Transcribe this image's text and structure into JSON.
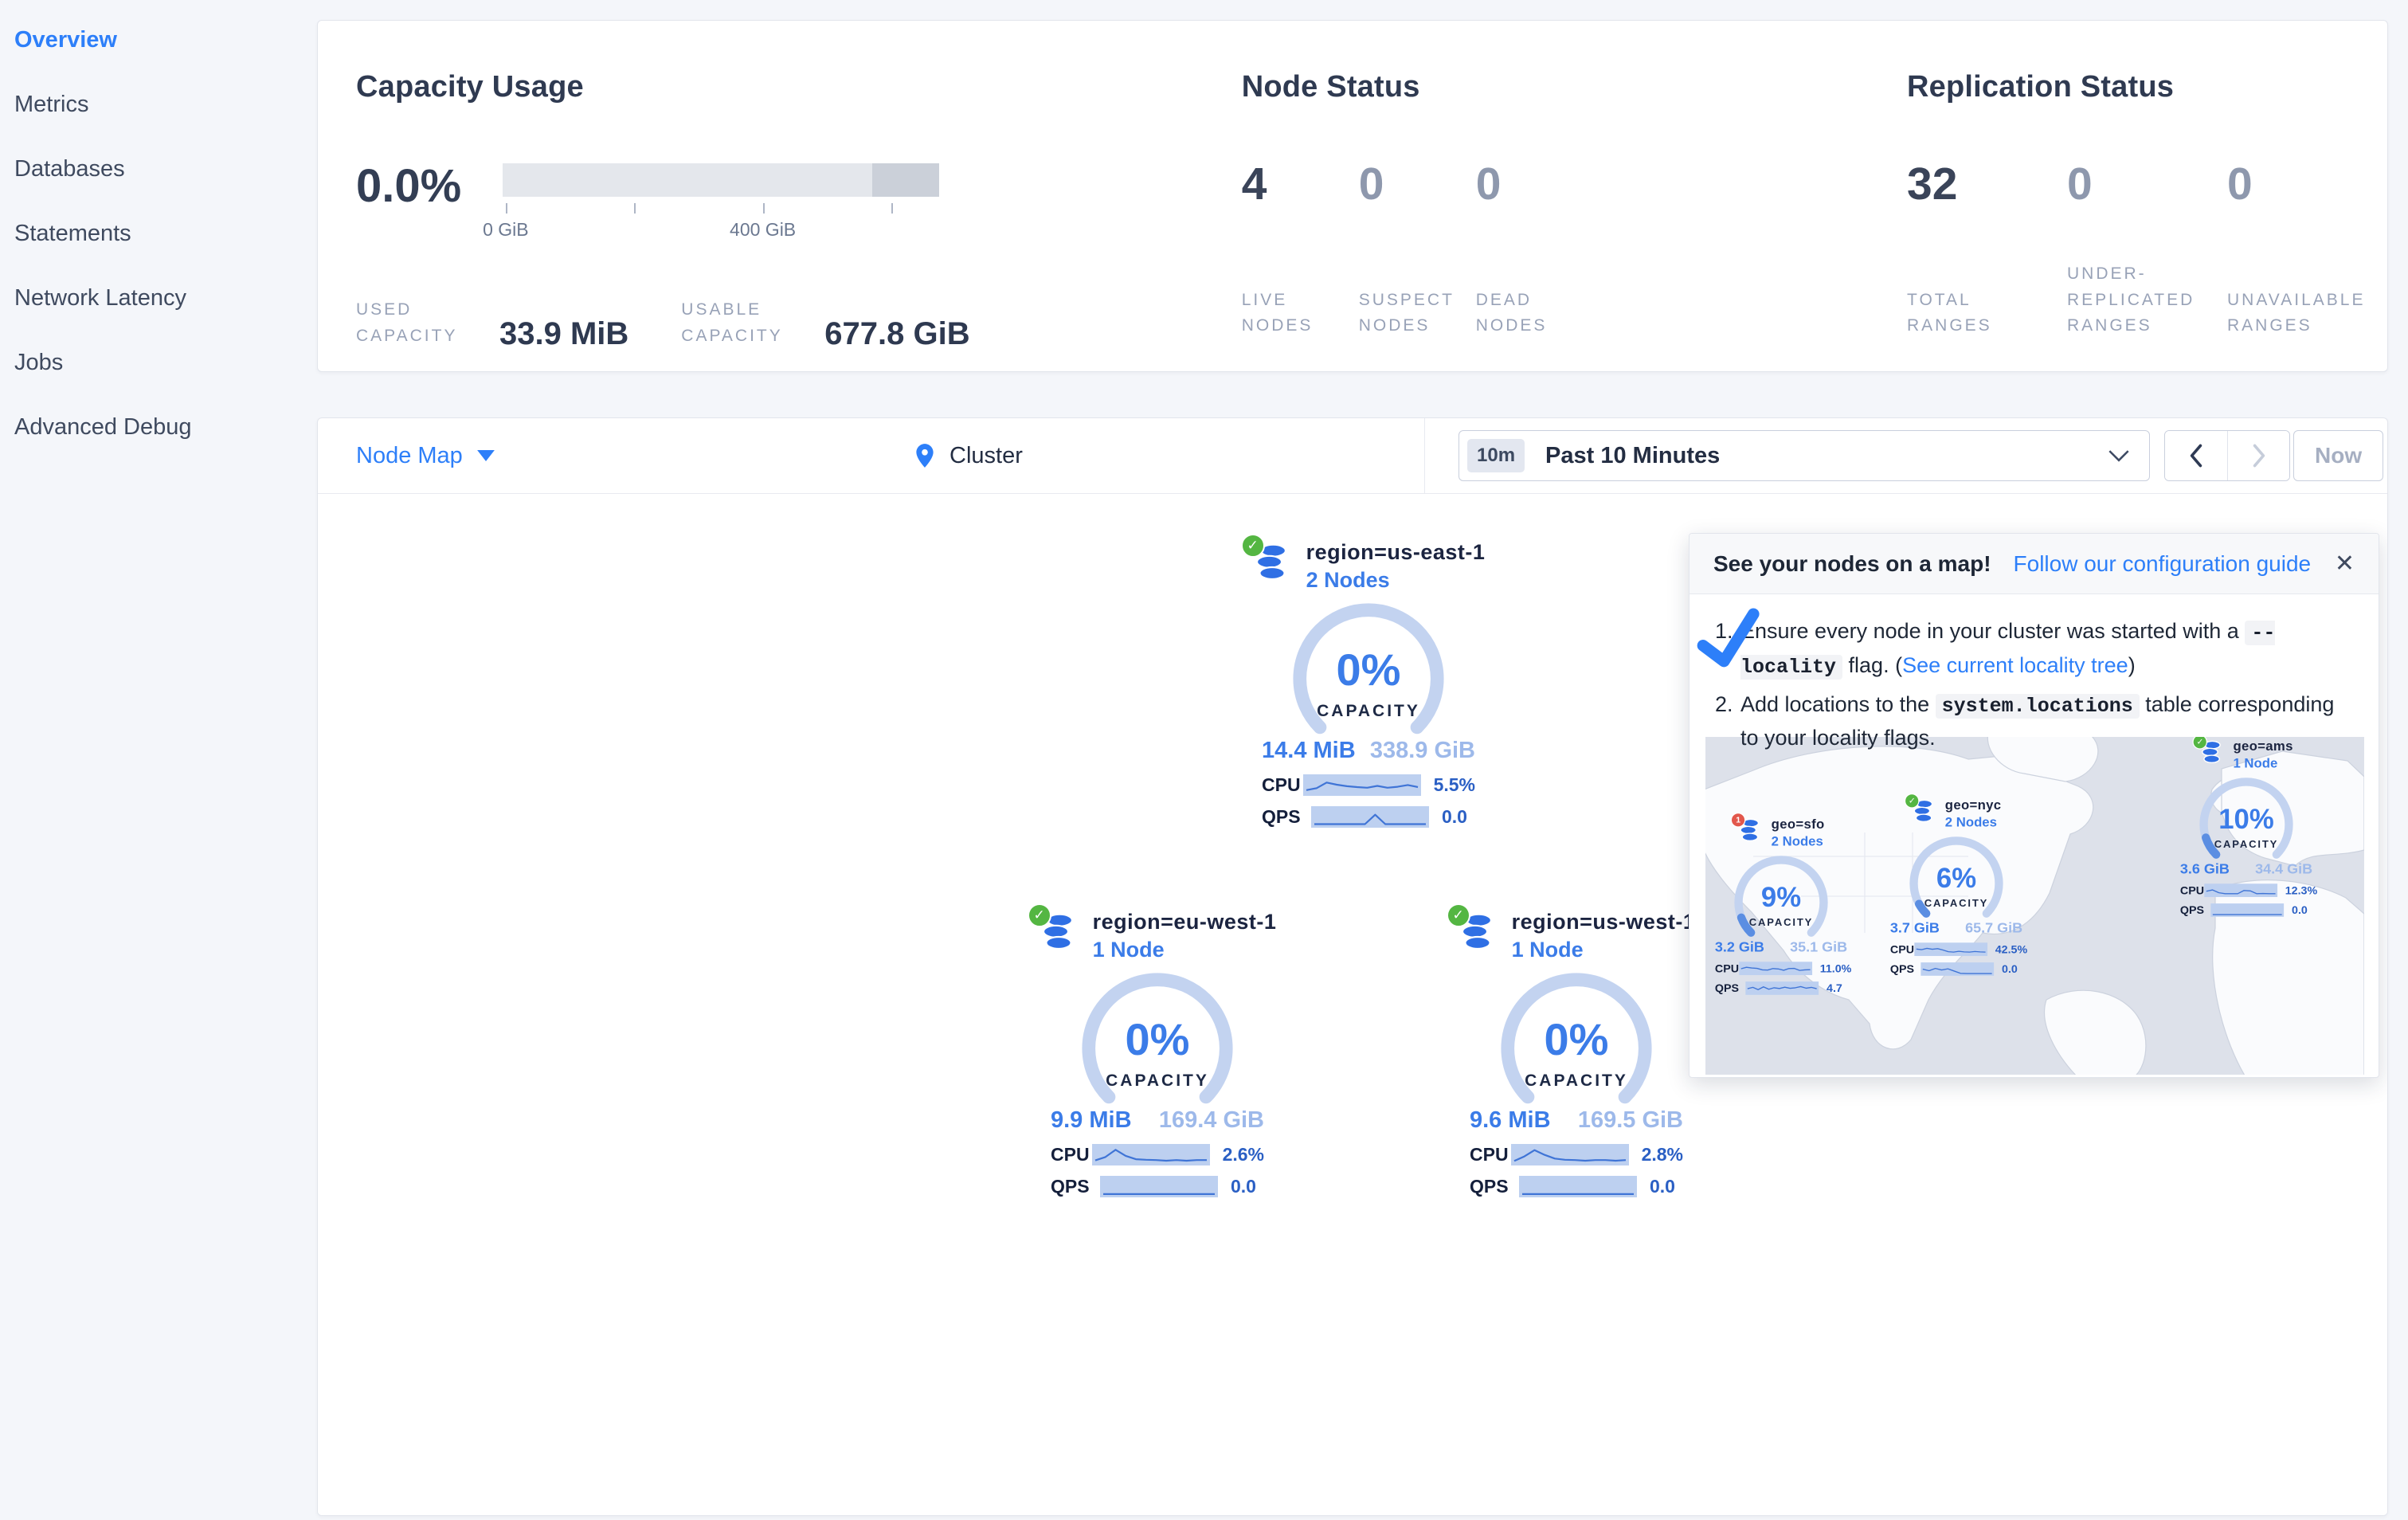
{
  "colors": {
    "accent_blue": "#2d7ff9",
    "gauge_blue": "#3b7ce8",
    "ok_green": "#54b642",
    "alert_red": "#e2574c",
    "arc_track": "#c3d3f0",
    "arc_used": "#5b8ee2",
    "spark_band": "#bdd0f0",
    "spark_line": "#3f74d6"
  },
  "sidebar": {
    "items": [
      {
        "label": "Overview",
        "active": true
      },
      {
        "label": "Metrics",
        "active": false
      },
      {
        "label": "Databases",
        "active": false
      },
      {
        "label": "Statements",
        "active": false
      },
      {
        "label": "Network Latency",
        "active": false
      },
      {
        "label": "Jobs",
        "active": false
      },
      {
        "label": "Advanced Debug",
        "active": false
      }
    ]
  },
  "summary": {
    "capacity": {
      "title": "Capacity Usage",
      "percent": "0.0%",
      "axis": [
        {
          "pos": 0.7,
          "label": "0 GiB"
        },
        {
          "pos": 30.2,
          "label": ""
        },
        {
          "pos": 59.6,
          "label": "400 GiB"
        },
        {
          "pos": 89.0,
          "label": ""
        }
      ],
      "dark_segment_from": 84.6,
      "used_label": "USED CAPACITY",
      "used_value": "33.9 MiB",
      "usable_label": "USABLE CAPACITY",
      "usable_value": "677.8 GiB"
    },
    "nodes": {
      "title": "Node Status",
      "stats": [
        {
          "value": "4",
          "label": "LIVE NODES",
          "emphasis": true
        },
        {
          "value": "0",
          "label": "SUSPECT NODES",
          "emphasis": false
        },
        {
          "value": "0",
          "label": "DEAD NODES",
          "emphasis": false
        }
      ]
    },
    "replication": {
      "title": "Replication Status",
      "stats": [
        {
          "value": "32",
          "label": "TOTAL RANGES",
          "emphasis": true
        },
        {
          "value": "0",
          "label": "UNDER-REPLICATED RANGES",
          "emphasis": false
        },
        {
          "value": "0",
          "label": "UNAVAILABLE RANGES",
          "emphasis": false
        }
      ]
    }
  },
  "toolbar": {
    "view_selector": "Node Map",
    "breadcrumb": "Cluster",
    "time_badge": "10m",
    "time_label": "Past 10 Minutes",
    "now_label": "Now"
  },
  "labels": {
    "capacity": "CAPACITY",
    "cpu": "CPU",
    "qps": "QPS"
  },
  "map_nodes": [
    {
      "name": "region=us-east-1",
      "nodes_label": "2 Nodes",
      "status": "ok",
      "badge": "",
      "percent": "0%",
      "pct": 0,
      "used": "14.4 MiB",
      "total": "338.9 GiB",
      "cpu_value": "5.5%",
      "qps_value": "0.0",
      "cpu_spark": [
        22,
        35,
        72,
        58,
        48,
        42,
        38,
        50,
        38,
        44,
        56,
        42
      ],
      "qps_spark": [
        8,
        8,
        8,
        8,
        8,
        8,
        70,
        8,
        8,
        8,
        8,
        8
      ]
    },
    {
      "name": "region=eu-west-1",
      "nodes_label": "1 Node",
      "status": "ok",
      "badge": "",
      "percent": "0%",
      "pct": 0,
      "used": "9.9 MiB",
      "total": "169.4 GiB",
      "cpu_value": "2.6%",
      "qps_value": "0.0",
      "cpu_spark": [
        18,
        40,
        88,
        48,
        26,
        22,
        20,
        16,
        20,
        16,
        20,
        20
      ],
      "qps_spark": [
        6,
        6,
        6,
        6,
        6,
        6,
        6,
        6,
        6,
        6,
        6,
        6
      ]
    },
    {
      "name": "region=us-west-1",
      "nodes_label": "1 Node",
      "status": "ok",
      "badge": "",
      "percent": "0%",
      "pct": 0,
      "used": "9.6 MiB",
      "total": "169.5 GiB",
      "cpu_value": "2.8%",
      "qps_value": "0.0",
      "cpu_spark": [
        14,
        44,
        86,
        54,
        30,
        22,
        20,
        16,
        20,
        20,
        16,
        20
      ],
      "qps_spark": [
        6,
        6,
        6,
        6,
        6,
        6,
        6,
        6,
        6,
        6,
        6,
        6
      ]
    }
  ],
  "popup": {
    "title": "See your nodes on a map!",
    "link_label": "Follow our configuration guide",
    "close_glyph": "✕",
    "steps": [
      {
        "num": "1.",
        "parts": [
          {
            "t": "text",
            "v": "Ensure every node in your cluster was started with a "
          },
          {
            "t": "code",
            "v": "--locality"
          },
          {
            "t": "text",
            "v": " flag. ("
          },
          {
            "t": "link",
            "v": "See current locality tree"
          },
          {
            "t": "text",
            "v": ")"
          }
        ]
      },
      {
        "num": "2.",
        "parts": [
          {
            "t": "text",
            "v": "Add locations to the "
          },
          {
            "t": "code",
            "v": "system.locations"
          },
          {
            "t": "text",
            "v": " table corresponding to your locality flags."
          }
        ]
      }
    ],
    "mini_nodes": [
      {
        "name": "geo=sfo",
        "nodes_label": "2 Nodes",
        "status": "alert",
        "badge": "1",
        "percent": "9%",
        "pct": 9,
        "used": "3.2 GiB",
        "total": "35.1 GiB",
        "cpu_value": "11.0%",
        "qps_value": "4.7",
        "cpu_spark": [
          52,
          68,
          60,
          56,
          40,
          38,
          54,
          50,
          36,
          54,
          56,
          34,
          40,
          42
        ],
        "qps_spark": [
          50,
          64,
          40,
          70,
          44,
          60,
          52,
          66,
          54,
          60,
          72,
          56,
          64,
          50
        ]
      },
      {
        "name": "geo=nyc",
        "nodes_label": "2 Nodes",
        "status": "ok",
        "badge": "",
        "percent": "6%",
        "pct": 6,
        "used": "3.7 GiB",
        "total": "65.7 GiB",
        "cpu_value": "42.5%",
        "qps_value": "0.0",
        "cpu_spark": [
          58,
          52,
          66,
          56,
          62,
          48,
          30,
          26,
          34,
          28,
          26,
          32,
          28,
          26
        ],
        "qps_spark": [
          54,
          38,
          62,
          46,
          58,
          34,
          10,
          8,
          8,
          8,
          8,
          8
        ]
      },
      {
        "name": "geo=ams",
        "nodes_label": "1 Node",
        "status": "ok",
        "badge": "",
        "percent": "10%",
        "pct": 10,
        "used": "3.6 GiB",
        "total": "34.4 GiB",
        "cpu_value": "12.3%",
        "qps_value": "0.0",
        "cpu_spark": [
          46,
          60,
          30,
          20,
          20,
          20,
          54,
          50,
          20,
          22,
          20,
          20
        ],
        "qps_spark": [
          8,
          8,
          8,
          8,
          8,
          8,
          8,
          8,
          8,
          8,
          8,
          8
        ]
      }
    ]
  }
}
